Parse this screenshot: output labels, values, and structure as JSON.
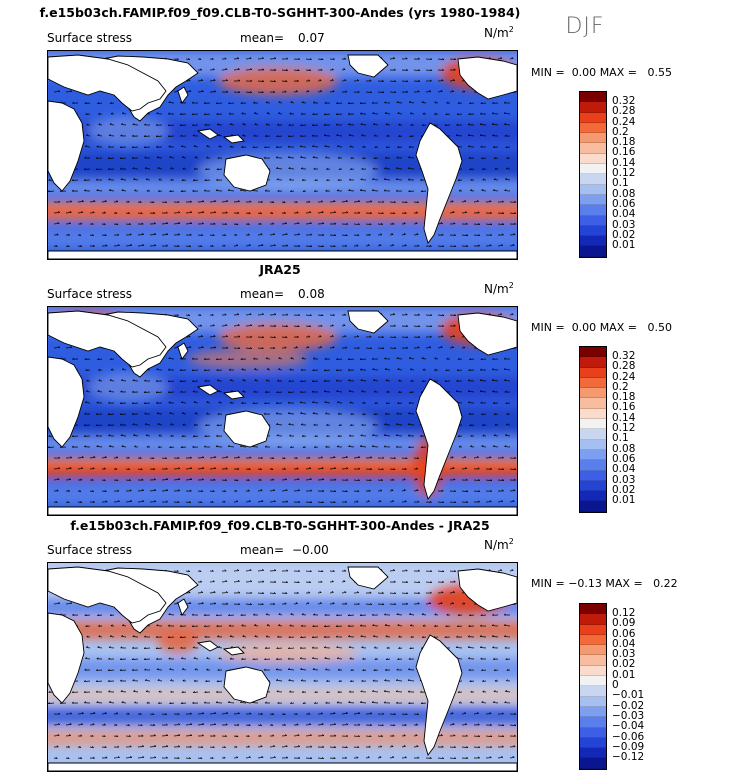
{
  "season": "DJF",
  "panels": [
    {
      "title": "f.e15b03ch.FAMIP.f09_f09.CLB-T0-SGHHT-300-Andes (yrs 1980-1984)",
      "field": "Surface stress",
      "mean_label": "mean=",
      "mean_value": "0.07",
      "unit": "N/m",
      "unit_exp": "2",
      "min_label": "MIN =",
      "min_value": "0.00",
      "max_label": "MAX =",
      "max_value": "0.55",
      "colorbar_colors": [
        "#7a0000",
        "#c01a0a",
        "#e8401a",
        "#f26a3a",
        "#f59a70",
        "#f8bd9e",
        "#fbdccc",
        "#f2f2f2",
        "#c8d6f2",
        "#a4bff0",
        "#7d9ff0",
        "#5a7fec",
        "#3c5fe6",
        "#2444d4",
        "#1428b8",
        "#0a1590"
      ],
      "colorbar_labels": [
        "0.32",
        "0.28",
        "0.24",
        "0.2",
        "0.18",
        "0.16",
        "0.14",
        "0.12",
        "0.1",
        "0.08",
        "0.06",
        "0.04",
        "0.03",
        "0.02",
        "0.01"
      ]
    },
    {
      "title": "JRA25",
      "field": "Surface stress",
      "mean_label": "mean=",
      "mean_value": "0.08",
      "unit": "N/m",
      "unit_exp": "2",
      "min_label": "MIN =",
      "min_value": "0.00",
      "max_label": "MAX =",
      "max_value": "0.50",
      "colorbar_colors": [
        "#7a0000",
        "#c01a0a",
        "#e8401a",
        "#f26a3a",
        "#f59a70",
        "#f8bd9e",
        "#fbdccc",
        "#f2f2f2",
        "#c8d6f2",
        "#a4bff0",
        "#7d9ff0",
        "#5a7fec",
        "#3c5fe6",
        "#2444d4",
        "#1428b8",
        "#0a1590"
      ],
      "colorbar_labels": [
        "0.32",
        "0.28",
        "0.24",
        "0.2",
        "0.18",
        "0.16",
        "0.14",
        "0.12",
        "0.1",
        "0.08",
        "0.06",
        "0.04",
        "0.03",
        "0.02",
        "0.01"
      ]
    },
    {
      "title": "f.e15b03ch.FAMIP.f09_f09.CLB-T0-SGHHT-300-Andes - JRA25",
      "field": "Surface stress",
      "mean_label": "mean=",
      "mean_value": "−0.00",
      "unit": "N/m",
      "unit_exp": "2",
      "min_label": "MIN =",
      "min_value": "−0.13",
      "max_label": "MAX =",
      "max_value": "0.22",
      "colorbar_colors": [
        "#7a0000",
        "#c01a0a",
        "#e8401a",
        "#f26a3a",
        "#f59a70",
        "#f8bd9e",
        "#fbdccc",
        "#f2f2f2",
        "#c8d6f2",
        "#a4bff0",
        "#7d9ff0",
        "#5a7fec",
        "#3c5fe6",
        "#2444d4",
        "#1428b8",
        "#0a1590"
      ],
      "colorbar_labels": [
        "0.12",
        "0.09",
        "0.06",
        "0.04",
        "0.03",
        "0.02",
        "0.01",
        "0",
        "−0.01",
        "−0.02",
        "−0.03",
        "−0.04",
        "−0.06",
        "−0.09",
        "−0.12"
      ]
    }
  ]
}
